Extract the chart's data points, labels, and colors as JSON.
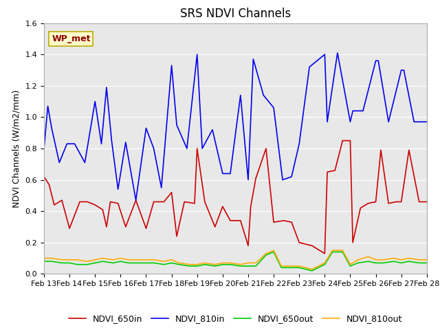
{
  "title": "SRS NDVI Channels",
  "ylabel": "NDVI Channels (W/m2/mm)",
  "annotation": "WP_met",
  "ylim": [
    0.0,
    1.6
  ],
  "yticks": [
    0.0,
    0.2,
    0.4,
    0.6,
    0.8,
    1.0,
    1.2,
    1.4,
    1.6
  ],
  "x_labels": [
    "Feb 13",
    "Feb 14",
    "Feb 15",
    "Feb 16",
    "Feb 17",
    "Feb 18",
    "Feb 19",
    "Feb 20",
    "Feb 21",
    "Feb 22",
    "Feb 23",
    "Feb 24",
    "Feb 25",
    "Feb 26",
    "Feb 27",
    "Feb 28"
  ],
  "color_650in": "#cc0000",
  "color_810in": "#0000ee",
  "color_650out": "#00cc00",
  "color_810out": "#ffaa00",
  "bg_color": "#e8e8e8",
  "title_fontsize": 12,
  "label_fontsize": 9,
  "tick_fontsize": 8,
  "legend_fontsize": 9,
  "NDVI_650in_x": [
    13.0,
    13.2,
    13.4,
    13.7,
    14.0,
    14.4,
    14.7,
    15.0,
    15.3,
    15.45,
    15.6,
    15.9,
    16.2,
    16.6,
    17.0,
    17.3,
    17.7,
    18.0,
    18.2,
    18.5,
    18.9,
    19.0,
    19.3,
    19.7,
    20.0,
    20.3,
    20.7,
    21.0,
    21.1,
    21.3,
    21.7,
    22.0,
    22.4,
    22.7,
    23.0,
    23.5,
    24.0,
    24.1,
    24.4,
    24.7,
    25.0,
    25.1,
    25.4,
    25.7,
    26.0,
    26.2,
    26.5,
    26.8,
    27.0,
    27.3,
    27.7,
    28.0
  ],
  "NDVI_650in_y": [
    0.62,
    0.57,
    0.44,
    0.47,
    0.29,
    0.46,
    0.46,
    0.44,
    0.41,
    0.3,
    0.46,
    0.45,
    0.3,
    0.47,
    0.29,
    0.46,
    0.46,
    0.52,
    0.24,
    0.46,
    0.45,
    0.8,
    0.46,
    0.3,
    0.43,
    0.34,
    0.34,
    0.18,
    0.43,
    0.61,
    0.8,
    0.33,
    0.34,
    0.33,
    0.2,
    0.18,
    0.13,
    0.65,
    0.66,
    0.85,
    0.85,
    0.2,
    0.42,
    0.45,
    0.46,
    0.79,
    0.45,
    0.46,
    0.46,
    0.79,
    0.46,
    0.46
  ],
  "NDVI_810in_x": [
    13.0,
    13.15,
    13.3,
    13.6,
    13.9,
    14.2,
    14.6,
    15.0,
    15.25,
    15.45,
    15.65,
    15.9,
    16.2,
    16.6,
    17.0,
    17.3,
    17.6,
    18.0,
    18.2,
    18.6,
    19.0,
    19.2,
    19.6,
    20.0,
    20.3,
    20.7,
    21.0,
    21.2,
    21.6,
    22.0,
    22.35,
    22.7,
    23.0,
    23.4,
    24.0,
    24.1,
    24.5,
    25.0,
    25.1,
    25.5,
    26.0,
    26.1,
    26.5,
    27.0,
    27.1,
    27.5,
    28.0
  ],
  "NDVI_810in_y": [
    0.8,
    1.07,
    0.93,
    0.71,
    0.83,
    0.83,
    0.71,
    1.1,
    0.83,
    1.19,
    0.85,
    0.54,
    0.84,
    0.47,
    0.93,
    0.8,
    0.55,
    1.33,
    0.95,
    0.8,
    1.4,
    0.8,
    0.92,
    0.64,
    0.64,
    1.14,
    0.6,
    1.37,
    1.14,
    1.06,
    0.6,
    0.62,
    0.83,
    1.32,
    1.4,
    0.97,
    1.41,
    0.97,
    1.04,
    1.04,
    1.36,
    1.36,
    0.97,
    1.3,
    1.3,
    0.97,
    0.97
  ],
  "NDVI_650out_x": [
    13.0,
    13.3,
    13.7,
    14.0,
    14.3,
    14.7,
    15.0,
    15.3,
    15.7,
    16.0,
    16.3,
    16.7,
    17.0,
    17.3,
    17.7,
    18.0,
    18.3,
    18.7,
    19.0,
    19.3,
    19.7,
    20.0,
    20.3,
    20.7,
    21.0,
    21.3,
    21.7,
    22.0,
    22.3,
    22.7,
    23.0,
    23.5,
    24.0,
    24.3,
    24.7,
    25.0,
    25.3,
    25.7,
    26.0,
    26.3,
    26.7,
    27.0,
    27.3,
    27.7,
    28.0
  ],
  "NDVI_650out_y": [
    0.08,
    0.08,
    0.07,
    0.07,
    0.06,
    0.06,
    0.07,
    0.08,
    0.07,
    0.08,
    0.07,
    0.07,
    0.07,
    0.07,
    0.06,
    0.07,
    0.06,
    0.05,
    0.05,
    0.06,
    0.05,
    0.06,
    0.06,
    0.05,
    0.05,
    0.05,
    0.12,
    0.14,
    0.04,
    0.04,
    0.04,
    0.02,
    0.06,
    0.14,
    0.14,
    0.05,
    0.07,
    0.08,
    0.07,
    0.07,
    0.08,
    0.07,
    0.08,
    0.07,
    0.07
  ],
  "NDVI_810out_x": [
    13.0,
    13.3,
    13.7,
    14.0,
    14.3,
    14.7,
    15.0,
    15.3,
    15.7,
    16.0,
    16.3,
    16.7,
    17.0,
    17.3,
    17.7,
    18.0,
    18.3,
    18.7,
    19.0,
    19.3,
    19.7,
    20.0,
    20.3,
    20.7,
    21.0,
    21.3,
    21.7,
    22.0,
    22.3,
    22.7,
    23.0,
    23.5,
    24.0,
    24.3,
    24.7,
    25.0,
    25.3,
    25.7,
    26.0,
    26.3,
    26.7,
    27.0,
    27.3,
    27.7,
    28.0
  ],
  "NDVI_810out_y": [
    0.1,
    0.1,
    0.09,
    0.09,
    0.09,
    0.08,
    0.09,
    0.1,
    0.09,
    0.1,
    0.09,
    0.09,
    0.09,
    0.09,
    0.08,
    0.09,
    0.07,
    0.06,
    0.06,
    0.07,
    0.06,
    0.07,
    0.07,
    0.06,
    0.07,
    0.07,
    0.13,
    0.15,
    0.05,
    0.05,
    0.05,
    0.03,
    0.07,
    0.15,
    0.15,
    0.06,
    0.09,
    0.11,
    0.09,
    0.09,
    0.1,
    0.09,
    0.1,
    0.09,
    0.09
  ]
}
